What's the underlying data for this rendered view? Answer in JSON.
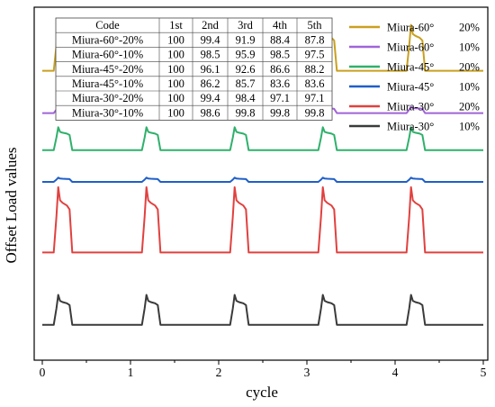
{
  "chart_data": {
    "type": "line",
    "ylabel": "Offset Load values",
    "xlabel": "cycle",
    "xlim": [
      0,
      5
    ],
    "xticks": [
      "0",
      "1",
      "2",
      "3",
      "4",
      "5"
    ],
    "y_ticks_shown": false,
    "grid": false,
    "legend_position": "top-right",
    "series": [
      {
        "name": "Miura-60°",
        "pct": "20%",
        "color": "#c9a020",
        "baseline": 0.18,
        "amp": 0.13
      },
      {
        "name": "Miura-60°",
        "pct": "10%",
        "color": "#a064d8",
        "baseline": 0.3,
        "amp": 0.018
      },
      {
        "name": "Miura-45°",
        "pct": "20%",
        "color": "#2fb06b",
        "baseline": 0.405,
        "amp": 0.065
      },
      {
        "name": "Miura-45°",
        "pct": "10%",
        "color": "#1f5fc8",
        "baseline": 0.495,
        "amp": 0.012
      },
      {
        "name": "Miura-30°",
        "pct": "20%",
        "color": "#e0413f",
        "baseline": 0.695,
        "amp": 0.185
      },
      {
        "name": "Miura-30°",
        "pct": "10%",
        "color": "#3a3a3a",
        "baseline": 0.9,
        "amp": 0.085
      }
    ],
    "pulse_starts": [
      0.15,
      1.15,
      2.15,
      3.15,
      4.15
    ],
    "pulse_width": 0.18,
    "table": {
      "headers": [
        "Code",
        "1st",
        "2nd",
        "3rd",
        "4th",
        "5th"
      ],
      "rows": [
        [
          "Miura-60°-20%",
          "100",
          "99.4",
          "91.9",
          "88.4",
          "87.8"
        ],
        [
          "Miura-60°-10%",
          "100",
          "98.5",
          "95.9",
          "98.5",
          "97.5"
        ],
        [
          "Miura-45°-20%",
          "100",
          "96.1",
          "92.6",
          "86.6",
          "88.2"
        ],
        [
          "Miura-45°-10%",
          "100",
          "86.2",
          "85.7",
          "83.6",
          "83.6"
        ],
        [
          "Miura-30°-20%",
          "100",
          "99.4",
          "98.4",
          "97.1",
          "97.1"
        ],
        [
          "Miura-30°-10%",
          "100",
          "98.6",
          "99.8",
          "99.8",
          "99.8"
        ]
      ]
    }
  }
}
